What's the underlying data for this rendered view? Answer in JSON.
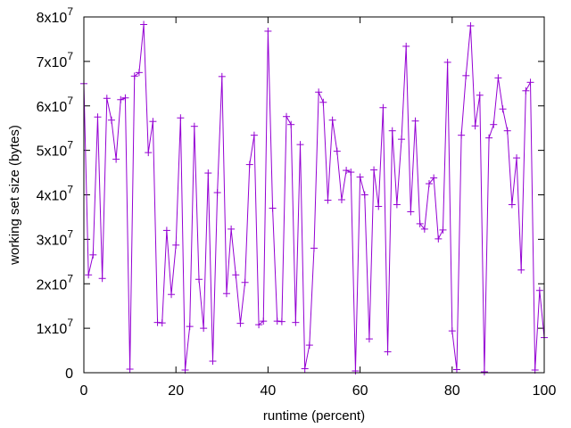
{
  "chart_data": {
    "type": "line",
    "title": "",
    "xlabel": "runtime (percent)",
    "ylabel": "working set size (bytes)",
    "xlim": [
      0,
      100
    ],
    "ylim": [
      0,
      80000000
    ],
    "xticks": [
      0,
      20,
      40,
      60,
      80,
      100
    ],
    "xtick_labels": [
      "0",
      "20",
      "40",
      "60",
      "80",
      "100"
    ],
    "yticks": [
      0,
      10000000,
      20000000,
      30000000,
      40000000,
      50000000,
      60000000,
      70000000,
      80000000
    ],
    "ytick_labels": [
      {
        "base": "0",
        "exp": ""
      },
      {
        "base": "1x10",
        "exp": "7"
      },
      {
        "base": "2x10",
        "exp": "7"
      },
      {
        "base": "3x10",
        "exp": "7"
      },
      {
        "base": "4x10",
        "exp": "7"
      },
      {
        "base": "5x10",
        "exp": "7"
      },
      {
        "base": "6x10",
        "exp": "7"
      },
      {
        "base": "7x10",
        "exp": "7"
      },
      {
        "base": "8x10",
        "exp": "7"
      }
    ],
    "grid": false,
    "legend": "none",
    "series": [
      {
        "color": "#9400d3",
        "marker": "plus",
        "x": [
          0,
          1,
          2,
          3,
          4,
          5,
          6,
          7,
          8,
          9,
          10,
          11,
          12,
          13,
          14,
          15,
          16,
          17,
          18,
          19,
          20,
          21,
          22,
          23,
          24,
          25,
          26,
          27,
          28,
          29,
          30,
          31,
          32,
          33,
          34,
          35,
          36,
          37,
          38,
          39,
          40,
          41,
          42,
          43,
          44,
          45,
          46,
          47,
          48,
          49,
          50,
          51,
          52,
          53,
          54,
          55,
          56,
          57,
          58,
          59,
          60,
          61,
          62,
          63,
          64,
          65,
          66,
          67,
          68,
          69,
          70,
          71,
          72,
          73,
          74,
          75,
          76,
          77,
          78,
          79,
          80,
          81,
          82,
          83,
          84,
          85,
          86,
          87,
          88,
          89,
          90,
          91,
          92,
          93,
          94,
          95,
          96,
          97,
          98,
          99,
          100
        ],
        "y": [
          65000000,
          22000000,
          26500000,
          57500000,
          21200000,
          61700000,
          56800000,
          48000000,
          61400000,
          61800000,
          800000,
          66700000,
          67500000,
          78300000,
          49500000,
          56500000,
          11300000,
          11200000,
          32000000,
          17600000,
          28700000,
          57300000,
          600000,
          10400000,
          55400000,
          21000000,
          10000000,
          44900000,
          2600000,
          40500000,
          66600000,
          17800000,
          32300000,
          22000000,
          11100000,
          20300000,
          46800000,
          53400000,
          10800000,
          11600000,
          76800000,
          37000000,
          11600000,
          11500000,
          57600000,
          55800000,
          11300000,
          51300000,
          900000,
          6200000,
          28000000,
          63100000,
          60800000,
          38800000,
          56800000,
          49800000,
          38900000,
          45500000,
          45100000,
          400000,
          44000000,
          40000000,
          7600000,
          45600000,
          37400000,
          59600000,
          4700000,
          54400000,
          37800000,
          52500000,
          73400000,
          36200000,
          56600000,
          33500000,
          32300000,
          42500000,
          43800000,
          30100000,
          32100000,
          69800000,
          9400000,
          700000,
          53400000,
          66800000,
          78000000,
          55500000,
          62400000,
          200000,
          52800000,
          55800000,
          66300000,
          59300000,
          54400000,
          37800000,
          48300000,
          23100000,
          63400000,
          65300000,
          600000,
          18500000,
          7900000
        ]
      }
    ]
  }
}
